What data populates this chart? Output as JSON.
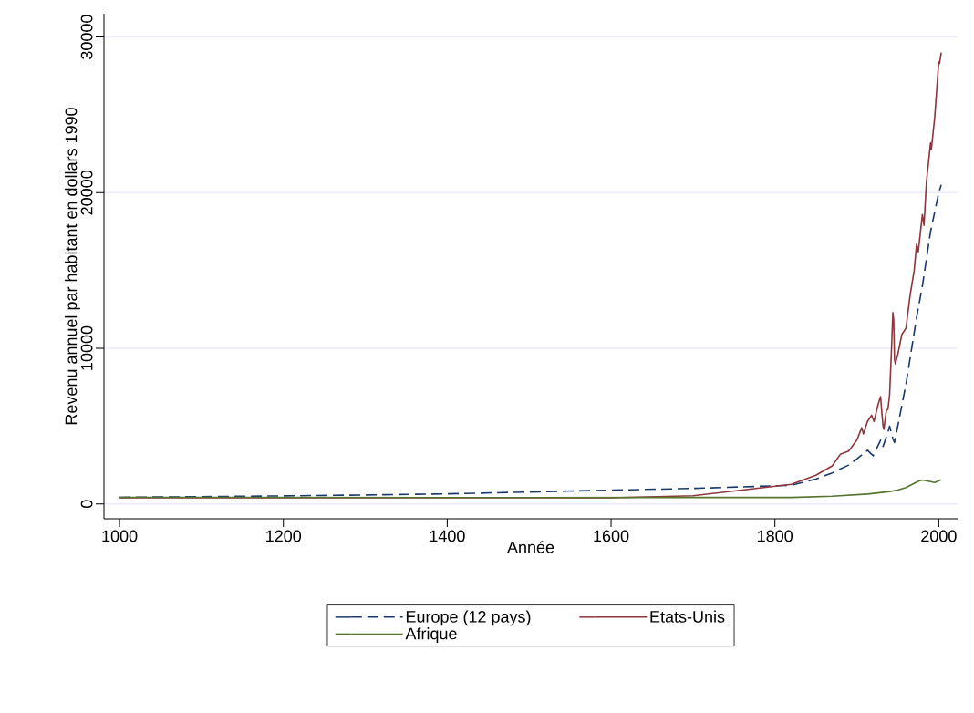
{
  "chart_data": {
    "type": "line",
    "xlabel": "Année",
    "ylabel": "Revenu annuel par habitant en dollars 1990",
    "xlim": [
      981,
      2023
    ],
    "ylim": [
      -950,
      31500
    ],
    "xticks": [
      1000,
      1200,
      1400,
      1600,
      1800,
      2000
    ],
    "yticks": [
      0,
      10000,
      20000,
      30000
    ],
    "grid": "y",
    "legend": "bottom",
    "series": [
      {
        "name": "Europe (12 pays)",
        "color": "#1a3a6e",
        "line_style": "dashed",
        "x": [
          1000,
          1100,
          1200,
          1300,
          1400,
          1500,
          1600,
          1700,
          1820,
          1850,
          1870,
          1890,
          1900,
          1913,
          1920,
          1929,
          1932,
          1938,
          1940,
          1944,
          1946,
          1950,
          1960,
          1973,
          1980,
          1990,
          2000,
          2003
        ],
        "values": [
          430,
          470,
          520,
          580,
          650,
          770,
          890,
          1000,
          1200,
          1600,
          2000,
          2500,
          2900,
          3450,
          3100,
          4100,
          3700,
          4600,
          5000,
          4200,
          3950,
          5000,
          7700,
          12000,
          14000,
          17500,
          20000,
          20500
        ]
      },
      {
        "name": "Etats-Unis",
        "color": "#90353b",
        "line_style": "solid",
        "x": [
          1000,
          1500,
          1600,
          1700,
          1820,
          1850,
          1870,
          1880,
          1890,
          1900,
          1906,
          1908,
          1913,
          1918,
          1921,
          1926,
          1929,
          1930,
          1932,
          1933,
          1936,
          1938,
          1940,
          1942,
          1944,
          1945,
          1946,
          1947,
          1950,
          1955,
          1960,
          1965,
          1970,
          1973,
          1975,
          1980,
          1982,
          1985,
          1990,
          1991,
          1995,
          2000,
          2001,
          2003
        ],
        "values": [
          400,
          400,
          400,
          530,
          1260,
          1850,
          2450,
          3200,
          3400,
          4100,
          4900,
          4500,
          5300,
          5700,
          5300,
          6400,
          6900,
          6200,
          5000,
          4800,
          6000,
          6100,
          7000,
          9500,
          12300,
          11800,
          9300,
          9000,
          9600,
          10900,
          11300,
          13400,
          15000,
          16700,
          16200,
          18600,
          17900,
          20700,
          23200,
          22800,
          24800,
          28400,
          28300,
          29000
        ]
      },
      {
        "name": "Afrique",
        "color": "#55752f",
        "line_style": "solid",
        "x": [
          1000,
          1500,
          1700,
          1820,
          1870,
          1913,
          1940,
          1950,
          1960,
          1973,
          1977,
          1980,
          1990,
          1995,
          2003
        ],
        "values": [
          430,
          410,
          420,
          420,
          500,
          640,
          800,
          890,
          1060,
          1410,
          1500,
          1540,
          1440,
          1380,
          1550
        ]
      }
    ]
  }
}
